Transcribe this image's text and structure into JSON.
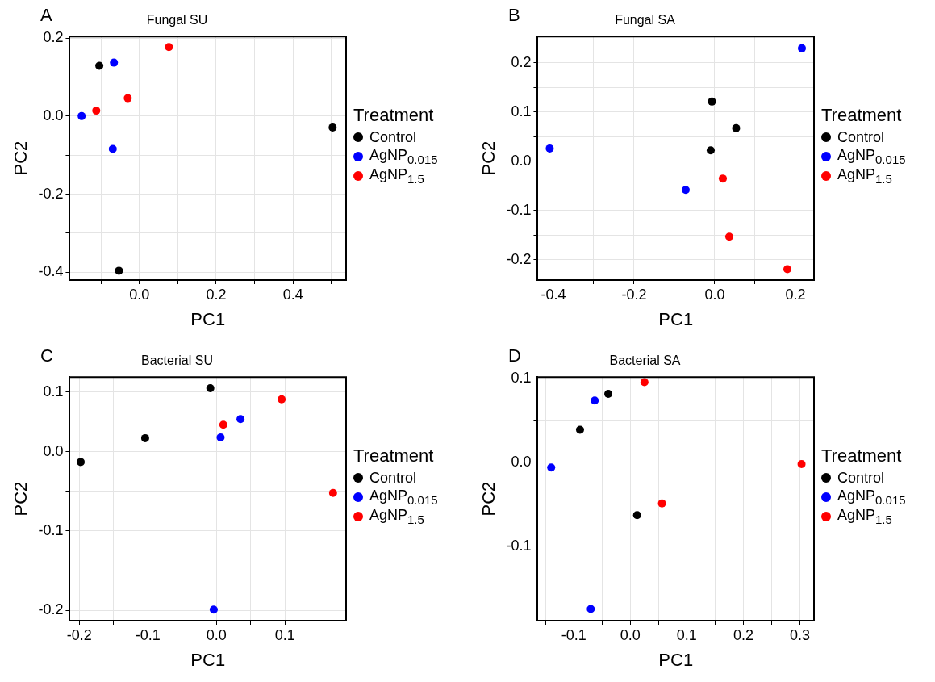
{
  "chart_data": [
    {
      "type": "scatter",
      "title": "Fungal SU",
      "xlabel": "PC1",
      "ylabel": "PC2",
      "legend_title": "Treatment",
      "legend": "right",
      "grid": true,
      "marker": "circle",
      "annotations": [
        "A"
      ],
      "xlim": [
        -0.181,
        0.538
      ],
      "ylim": [
        -0.42,
        0.204
      ],
      "xticks": [
        {
          "value": -0.1,
          "label": null
        },
        {
          "value": 0,
          "label": "0.0"
        },
        {
          "value": 0.1,
          "label": null
        },
        {
          "value": 0.2,
          "label": "0.2"
        },
        {
          "value": 0.3,
          "label": null
        },
        {
          "value": 0.4,
          "label": "0.4"
        },
        {
          "value": 0.5,
          "label": null
        }
      ],
      "yticks": [
        {
          "value": -0.4,
          "label": "-0.4"
        },
        {
          "value": -0.3,
          "label": null
        },
        {
          "value": -0.2,
          "label": "-0.2"
        },
        {
          "value": -0.1,
          "label": null
        },
        {
          "value": 0,
          "label": "0.0"
        },
        {
          "value": 0.1,
          "label": null
        },
        {
          "value": 0.2,
          "label": "0.2"
        }
      ],
      "series": [
        {
          "name": "Control",
          "color": "#000000",
          "x": [
            -0.104,
            -0.053,
            0.503
          ],
          "values": [
            0.129,
            -0.396,
            -0.029
          ]
        },
        {
          "name": "AgNP$_{0.015}$",
          "color": "#0000ff",
          "x": [
            -0.066,
            -0.15,
            -0.069
          ],
          "values": [
            0.137,
            0.0,
            -0.084
          ]
        },
        {
          "name": "AgNP$_{1.5}$",
          "color": "#ff0000",
          "x": [
            0.077,
            -0.03,
            -0.112
          ],
          "values": [
            0.177,
            0.046,
            0.014
          ]
        }
      ]
    },
    {
      "type": "scatter",
      "title": "Fungal SA",
      "xlabel": "PC1",
      "ylabel": "PC2",
      "legend_title": "Treatment",
      "legend": "right",
      "grid": true,
      "marker": "circle",
      "annotations": [
        "B"
      ],
      "xlim": [
        -0.439,
        0.246
      ],
      "ylim": [
        -0.241,
        0.253
      ],
      "xticks": [
        {
          "value": -0.4,
          "label": "-0.4"
        },
        {
          "value": -0.3,
          "label": null
        },
        {
          "value": -0.2,
          "label": "-0.2"
        },
        {
          "value": -0.1,
          "label": null
        },
        {
          "value": 0,
          "label": "0.0"
        },
        {
          "value": 0.1,
          "label": null
        },
        {
          "value": 0.2,
          "label": "0.2"
        }
      ],
      "yticks": [
        {
          "value": -0.2,
          "label": "-0.2"
        },
        {
          "value": -0.15,
          "label": null
        },
        {
          "value": -0.1,
          "label": "-0.1"
        },
        {
          "value": -0.05,
          "label": null
        },
        {
          "value": 0,
          "label": "0.0"
        },
        {
          "value": 0.05,
          "label": null
        },
        {
          "value": 0.1,
          "label": "0.1"
        },
        {
          "value": 0.15,
          "label": null
        },
        {
          "value": 0.2,
          "label": "0.2"
        }
      ],
      "series": [
        {
          "name": "Control",
          "color": "#000000",
          "x": [
            -0.007,
            0.053,
            -0.01
          ],
          "values": [
            0.121,
            0.067,
            0.022
          ]
        },
        {
          "name": "AgNP$_{0.015}$",
          "color": "#0000ff",
          "x": [
            0.216,
            -0.409,
            -0.072
          ],
          "values": [
            0.229,
            0.026,
            -0.058
          ]
        },
        {
          "name": "AgNP$_{1.5}$",
          "color": "#ff0000",
          "x": [
            0.02,
            0.036,
            0.18
          ],
          "values": [
            -0.035,
            -0.153,
            -0.219
          ]
        }
      ]
    },
    {
      "type": "scatter",
      "title": "Bacterial SU",
      "xlabel": "PC1",
      "ylabel": "PC2",
      "legend_title": "Treatment",
      "legend": "right",
      "grid": true,
      "marker": "circle",
      "annotations": [
        "C"
      ],
      "xlim": [
        -0.214,
        0.189
      ],
      "ylim": [
        -0.213,
        0.094
      ],
      "xticks": [
        {
          "value": -0.2,
          "label": "-0.2"
        },
        {
          "value": -0.15,
          "label": null
        },
        {
          "value": -0.1,
          "label": "-0.1"
        },
        {
          "value": -0.05,
          "label": null
        },
        {
          "value": 0,
          "label": "0.0"
        },
        {
          "value": 0.05,
          "label": null
        },
        {
          "value": 0.1,
          "label": "0.1"
        },
        {
          "value": 0.15,
          "label": null
        }
      ],
      "yticks": [
        {
          "value": -0.2,
          "label": "-0.2"
        },
        {
          "value": -0.15,
          "label": null
        },
        {
          "value": -0.1,
          "label": "-0.1"
        },
        {
          "value": -0.05,
          "label": null
        },
        {
          "value": 0,
          "label": "0.0"
        },
        {
          "value": 0.05,
          "label": null
        },
        {
          "value": 0.075,
          "label": "0.1"
        }
      ],
      "series": [
        {
          "name": "Control",
          "color": "#000000",
          "x": [
            -0.198,
            -0.104,
            -0.009
          ],
          "values": [
            -0.013,
            0.017,
            0.08
          ]
        },
        {
          "name": "AgNP$_{0.015}$",
          "color": "#0000ff",
          "x": [
            0.006,
            0.035,
            -0.004
          ],
          "values": [
            0.018,
            0.041,
            -0.199
          ]
        },
        {
          "name": "AgNP$_{1.5}$",
          "color": "#ff0000",
          "x": [
            0.01,
            0.095,
            0.17
          ],
          "values": [
            0.034,
            0.066,
            -0.052
          ]
        }
      ]
    },
    {
      "type": "scatter",
      "title": "Bacterial SA",
      "xlabel": "PC1",
      "ylabel": "PC2",
      "legend_title": "Treatment",
      "legend": "right",
      "grid": true,
      "marker": "circle",
      "annotations": [
        "D"
      ],
      "xlim": [
        -0.164,
        0.325
      ],
      "ylim": [
        -0.189,
        0.102
      ],
      "xticks": [
        {
          "value": -0.15,
          "label": null
        },
        {
          "value": -0.1,
          "label": "-0.1"
        },
        {
          "value": -0.05,
          "label": null
        },
        {
          "value": 0,
          "label": "0.0"
        },
        {
          "value": 0.05,
          "label": null
        },
        {
          "value": 0.1,
          "label": "0.1"
        },
        {
          "value": 0.15,
          "label": null
        },
        {
          "value": 0.2,
          "label": "0.2"
        },
        {
          "value": 0.25,
          "label": null
        },
        {
          "value": 0.3,
          "label": "0.3"
        }
      ],
      "yticks": [
        {
          "value": -0.15,
          "label": null
        },
        {
          "value": -0.1,
          "label": "-0.1"
        },
        {
          "value": -0.05,
          "label": null
        },
        {
          "value": 0,
          "label": "0.0"
        },
        {
          "value": 0.05,
          "label": null
        },
        {
          "value": 0.1,
          "label": "0.1"
        }
      ],
      "series": [
        {
          "name": "Control",
          "color": "#000000",
          "x": [
            -0.039,
            -0.089,
            0.012
          ],
          "values": [
            0.082,
            0.039,
            -0.063
          ]
        },
        {
          "name": "AgNP$_{0.015}$",
          "color": "#0000ff",
          "x": [
            -0.063,
            -0.14,
            -0.07
          ],
          "values": [
            0.074,
            -0.006,
            -0.175
          ]
        },
        {
          "name": "AgNP$_{1.5}$",
          "color": "#ff0000",
          "x": [
            0.025,
            0.056,
            0.303
          ],
          "values": [
            0.096,
            -0.049,
            -0.002
          ]
        }
      ]
    }
  ]
}
